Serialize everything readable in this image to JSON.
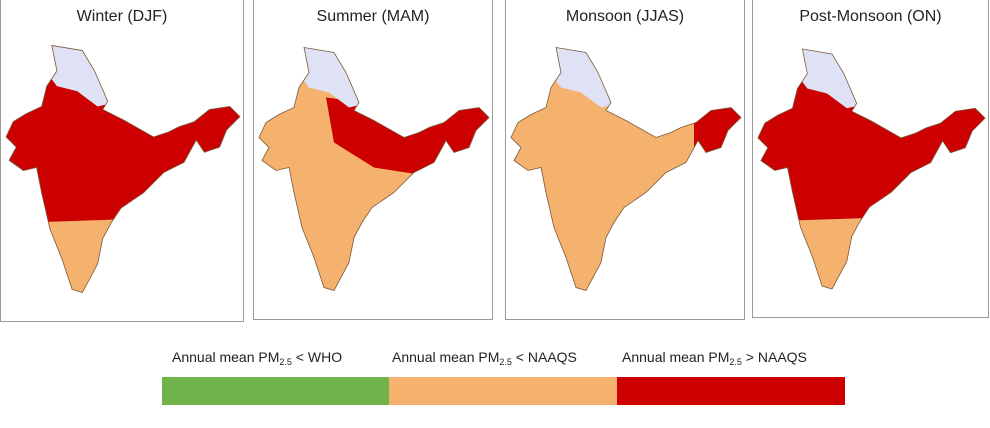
{
  "colors": {
    "below_who": "#71b34b",
    "below_naaqs": "#f4b26e",
    "above_naaqs": "#cc0000",
    "no_data": "#dfe2f5",
    "border": "#7a5a3a"
  },
  "panels": [
    {
      "title": "Winter (DJF)",
      "regions": {
        "central": "above_naaqs",
        "deccan": "above_naaqs",
        "tip": "below_naaqs",
        "nw": "above_naaqs",
        "north": "above_naaqs",
        "ne": "above_naaqs",
        "kashmir": "no_data"
      }
    },
    {
      "title": "Summer (MAM)",
      "regions": {
        "central": "below_naaqs",
        "deccan": "below_naaqs",
        "tip": "below_naaqs",
        "nw": "below_naaqs",
        "north": "above_naaqs",
        "ne": "above_naaqs",
        "kashmir": "no_data"
      }
    },
    {
      "title": "Monsoon (JJAS)",
      "regions": {
        "central": "below_naaqs",
        "deccan": "below_naaqs",
        "tip": "below_naaqs",
        "nw": "below_naaqs",
        "north": "below_naaqs",
        "ne": "above_naaqs",
        "kashmir": "no_data"
      }
    },
    {
      "title": "Post-Monsoon (ON)",
      "regions": {
        "central": "above_naaqs",
        "deccan": "above_naaqs",
        "tip": "below_naaqs",
        "nw": "above_naaqs",
        "north": "above_naaqs",
        "ne": "above_naaqs",
        "kashmir": "no_data"
      }
    }
  ],
  "legend": [
    {
      "prefix": "Annual mean PM",
      "sub": "2.5",
      "suffix": " < WHO",
      "color_key": "below_who"
    },
    {
      "prefix": "Annual mean PM",
      "sub": "2.5",
      "suffix": " < NAAQS",
      "color_key": "below_naaqs"
    },
    {
      "prefix": "Annual mean PM",
      "sub": "2.5",
      "suffix": " > NAAQS",
      "color_key": "above_naaqs"
    }
  ]
}
